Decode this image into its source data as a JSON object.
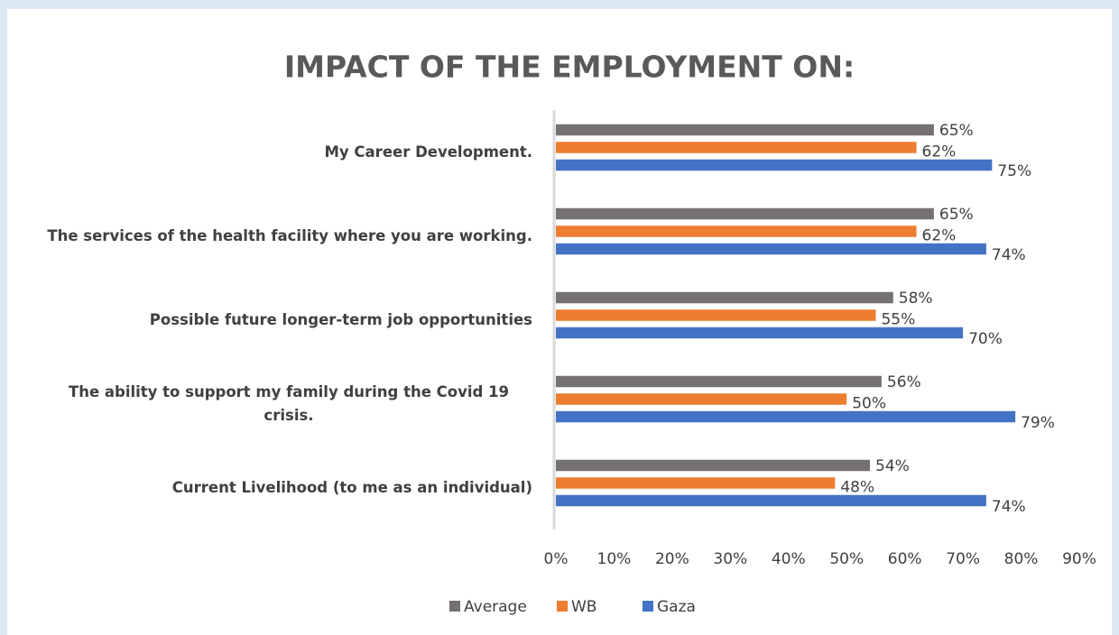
{
  "chart_data": {
    "type": "hbar",
    "title": "IMPACT OF THE EMPLOYMENT ON:",
    "categories": [
      "My Career Development.",
      "The services of the health facility where you are working.",
      "Possible future longer-term job opportunities",
      "The ability to support my family during the Covid 19 crisis.",
      "Current Livelihood (to me as an individual)"
    ],
    "series": [
      {
        "name": "Average",
        "color": "#767171",
        "values": [
          65,
          65,
          58,
          56,
          54
        ],
        "value_labels": [
          "65%",
          "65%",
          "58%",
          "56%",
          "54%"
        ]
      },
      {
        "name": "WB",
        "color": "#ed7d31",
        "values": [
          62,
          62,
          55,
          50,
          48
        ],
        "value_labels": [
          "62%",
          "62%",
          "55%",
          "50%",
          "48%"
        ]
      },
      {
        "name": "Gaza",
        "color": "#4472c4",
        "values": [
          75,
          74,
          70,
          79,
          74
        ],
        "value_labels": [
          "75%",
          "74%",
          "70%",
          "79%",
          "74%"
        ]
      }
    ],
    "xlim": [
      0,
      90
    ],
    "xticks": [
      {
        "value": 0,
        "label": "0%"
      },
      {
        "value": 10,
        "label": "10%"
      },
      {
        "value": 20,
        "label": "20%"
      },
      {
        "value": 30,
        "label": "30%"
      },
      {
        "value": 40,
        "label": "40%"
      },
      {
        "value": 50,
        "label": "50%"
      },
      {
        "value": 60,
        "label": "60%"
      },
      {
        "value": 70,
        "label": "70%"
      },
      {
        "value": 80,
        "label": "80%"
      },
      {
        "value": 90,
        "label": "90%"
      }
    ],
    "legend": "bottom"
  }
}
